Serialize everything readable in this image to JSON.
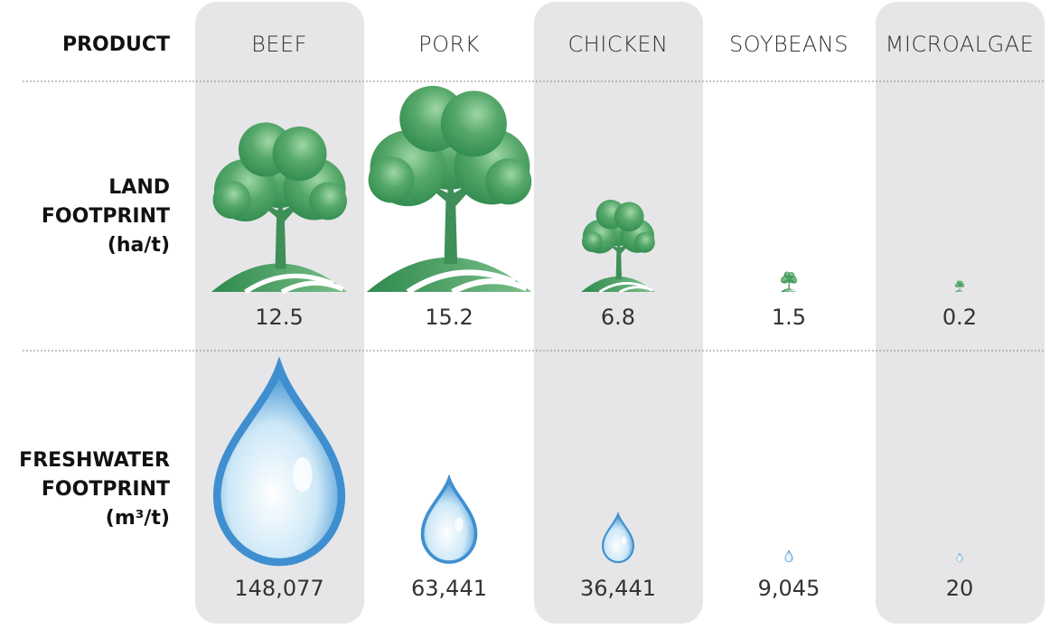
{
  "header": {
    "label": "PRODUCT",
    "products": [
      "BEEF",
      "PORK",
      "CHICKEN",
      "SOYBEANS",
      "MICROALGAE"
    ]
  },
  "rows": [
    {
      "label": [
        "LAND",
        "FOOTPRINT",
        "(ha/t)"
      ],
      "values": [
        12.5,
        15.2,
        6.8,
        1.5,
        0.2
      ]
    },
    {
      "label": [
        "FRESHWATER",
        "FOOTPRINT",
        "(m³/t)"
      ],
      "values": [
        148077,
        63441,
        36441,
        9045,
        20
      ],
      "value_labels": [
        "148,077",
        "63,441",
        "36,441",
        "9,045",
        "20"
      ]
    }
  ]
}
